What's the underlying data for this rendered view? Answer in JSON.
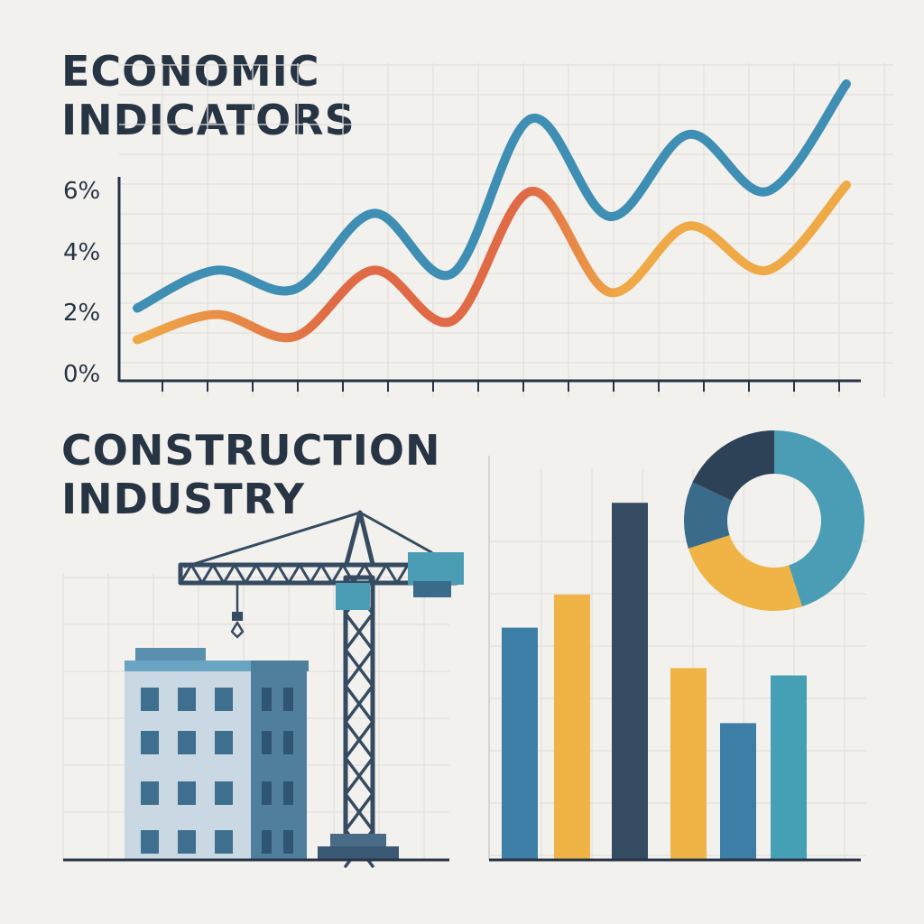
{
  "titles": {
    "top_line1": "ECONOMIC",
    "top_line2": "INDICATORS",
    "bottom_line1": "CONSTRUCTION",
    "bottom_line2": "INDUSTRY"
  },
  "chart_data": [
    {
      "type": "line",
      "yticks": [
        "6%",
        "4%",
        "2%",
        "0%"
      ],
      "ylim": [
        0,
        6
      ],
      "grid": true,
      "series": [
        {
          "color": "#3f8eb3",
          "values": [
            2.3,
            3.5,
            2.9,
            5.3,
            3.4,
            8.3,
            5.2,
            7.8,
            6.0,
            9.4
          ]
        },
        {
          "color": "#e06a45",
          "gradient": [
            "#efa946",
            "#e06a45"
          ],
          "values": [
            1.3,
            2.1,
            1.4,
            3.5,
            1.9,
            6.0,
            2.8,
            4.9,
            3.5,
            6.2
          ]
        }
      ]
    },
    {
      "type": "bar",
      "grid": true,
      "values": [
        6.3,
        7.2,
        9.7,
        5.2,
        3.7,
        5.0
      ],
      "colors": [
        "#3d7ea6",
        "#efb445",
        "#354b61",
        "#efb445",
        "#3d7ea6",
        "#459fb5"
      ]
    },
    {
      "type": "pie",
      "style": "donut",
      "values": [
        45,
        25,
        12,
        18
      ],
      "colors": [
        "#4a9db4",
        "#efb445",
        "#3a6b8a",
        "#2d4257"
      ]
    }
  ],
  "illustration": {
    "building_icon": "building-icon",
    "crane_icon": "tower-crane-icon"
  }
}
